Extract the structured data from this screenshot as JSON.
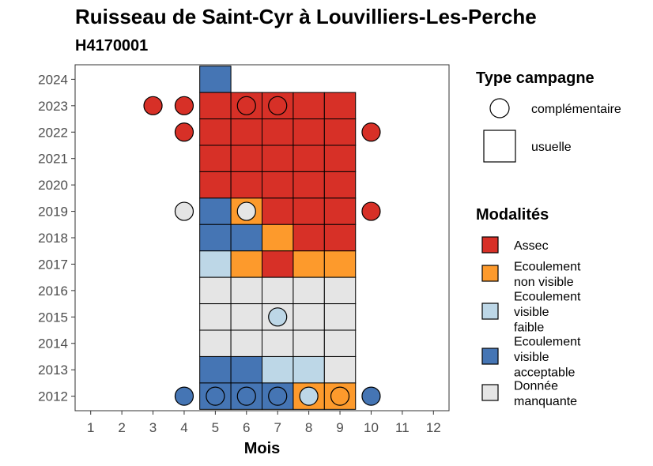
{
  "chart_data": {
    "type": "heatmap",
    "title": "Ruisseau de Saint-Cyr à Louvilliers-Les-Perche",
    "subtitle": "H4170001",
    "xlabel": "Mois",
    "ylabel": "",
    "x_ticks": [
      1,
      2,
      3,
      4,
      5,
      6,
      7,
      8,
      9,
      10,
      11,
      12
    ],
    "y_ticks": [
      2012,
      2013,
      2014,
      2015,
      2016,
      2017,
      2018,
      2019,
      2020,
      2021,
      2022,
      2023,
      2024
    ],
    "xlim": [
      0.5,
      12.5
    ],
    "ylim": [
      2011.45,
      2024.55
    ],
    "grid": false,
    "legend_position": "right",
    "legends": {
      "type_campagne": {
        "title": "Type campagne",
        "items": [
          {
            "key": "complementaire",
            "label": "complémentaire",
            "shape": "circle"
          },
          {
            "key": "usuelle",
            "label": "usuelle",
            "shape": "square"
          }
        ]
      },
      "modalites": {
        "title": "Modalités",
        "items": [
          {
            "key": "assec",
            "lines": [
              "Assec"
            ],
            "color": "#d73027"
          },
          {
            "key": "ecoulement_non_visible",
            "lines": [
              "Ecoulement",
              "non visible"
            ],
            "color": "#fd9a2c"
          },
          {
            "key": "ecoulement_visible_faible",
            "lines": [
              "Ecoulement",
              "visible",
              "faible"
            ],
            "color": "#bdd7e7"
          },
          {
            "key": "ecoulement_visible_acceptable",
            "lines": [
              "Ecoulement",
              "visible",
              "acceptable"
            ],
            "color": "#4575b4"
          },
          {
            "key": "donnee_manquante",
            "lines": [
              "Donnée",
              "manquante"
            ],
            "color": "#e5e5e5"
          }
        ]
      }
    },
    "tiles": [
      {
        "year": 2024,
        "month": 5,
        "value": "ecoulement_visible_acceptable"
      },
      {
        "year": 2023,
        "month": 5,
        "value": "assec"
      },
      {
        "year": 2023,
        "month": 6,
        "value": "assec"
      },
      {
        "year": 2023,
        "month": 7,
        "value": "assec"
      },
      {
        "year": 2023,
        "month": 8,
        "value": "assec"
      },
      {
        "year": 2023,
        "month": 9,
        "value": "assec"
      },
      {
        "year": 2022,
        "month": 5,
        "value": "assec"
      },
      {
        "year": 2022,
        "month": 6,
        "value": "assec"
      },
      {
        "year": 2022,
        "month": 7,
        "value": "assec"
      },
      {
        "year": 2022,
        "month": 8,
        "value": "assec"
      },
      {
        "year": 2022,
        "month": 9,
        "value": "assec"
      },
      {
        "year": 2021,
        "month": 5,
        "value": "assec"
      },
      {
        "year": 2021,
        "month": 6,
        "value": "assec"
      },
      {
        "year": 2021,
        "month": 7,
        "value": "assec"
      },
      {
        "year": 2021,
        "month": 8,
        "value": "assec"
      },
      {
        "year": 2021,
        "month": 9,
        "value": "assec"
      },
      {
        "year": 2020,
        "month": 5,
        "value": "assec"
      },
      {
        "year": 2020,
        "month": 6,
        "value": "assec"
      },
      {
        "year": 2020,
        "month": 7,
        "value": "assec"
      },
      {
        "year": 2020,
        "month": 8,
        "value": "assec"
      },
      {
        "year": 2020,
        "month": 9,
        "value": "assec"
      },
      {
        "year": 2019,
        "month": 5,
        "value": "ecoulement_visible_acceptable"
      },
      {
        "year": 2019,
        "month": 6,
        "value": "ecoulement_non_visible"
      },
      {
        "year": 2019,
        "month": 7,
        "value": "assec"
      },
      {
        "year": 2019,
        "month": 8,
        "value": "assec"
      },
      {
        "year": 2019,
        "month": 9,
        "value": "assec"
      },
      {
        "year": 2018,
        "month": 5,
        "value": "ecoulement_visible_acceptable"
      },
      {
        "year": 2018,
        "month": 6,
        "value": "ecoulement_visible_acceptable"
      },
      {
        "year": 2018,
        "month": 7,
        "value": "ecoulement_non_visible"
      },
      {
        "year": 2018,
        "month": 8,
        "value": "assec"
      },
      {
        "year": 2018,
        "month": 9,
        "value": "assec"
      },
      {
        "year": 2017,
        "month": 5,
        "value": "ecoulement_visible_faible"
      },
      {
        "year": 2017,
        "month": 6,
        "value": "ecoulement_non_visible"
      },
      {
        "year": 2017,
        "month": 7,
        "value": "assec"
      },
      {
        "year": 2017,
        "month": 8,
        "value": "ecoulement_non_visible"
      },
      {
        "year": 2017,
        "month": 9,
        "value": "ecoulement_non_visible"
      },
      {
        "year": 2016,
        "month": 5,
        "value": "donnee_manquante"
      },
      {
        "year": 2016,
        "month": 6,
        "value": "donnee_manquante"
      },
      {
        "year": 2016,
        "month": 7,
        "value": "donnee_manquante"
      },
      {
        "year": 2016,
        "month": 8,
        "value": "donnee_manquante"
      },
      {
        "year": 2016,
        "month": 9,
        "value": "donnee_manquante"
      },
      {
        "year": 2015,
        "month": 5,
        "value": "donnee_manquante"
      },
      {
        "year": 2015,
        "month": 6,
        "value": "donnee_manquante"
      },
      {
        "year": 2015,
        "month": 7,
        "value": "donnee_manquante"
      },
      {
        "year": 2015,
        "month": 8,
        "value": "donnee_manquante"
      },
      {
        "year": 2015,
        "month": 9,
        "value": "donnee_manquante"
      },
      {
        "year": 2014,
        "month": 5,
        "value": "donnee_manquante"
      },
      {
        "year": 2014,
        "month": 6,
        "value": "donnee_manquante"
      },
      {
        "year": 2014,
        "month": 7,
        "value": "donnee_manquante"
      },
      {
        "year": 2014,
        "month": 8,
        "value": "donnee_manquante"
      },
      {
        "year": 2014,
        "month": 9,
        "value": "donnee_manquante"
      },
      {
        "year": 2013,
        "month": 5,
        "value": "ecoulement_visible_acceptable"
      },
      {
        "year": 2013,
        "month": 6,
        "value": "ecoulement_visible_acceptable"
      },
      {
        "year": 2013,
        "month": 7,
        "value": "ecoulement_visible_faible"
      },
      {
        "year": 2013,
        "month": 8,
        "value": "ecoulement_visible_faible"
      },
      {
        "year": 2013,
        "month": 9,
        "value": "donnee_manquante"
      },
      {
        "year": 2012,
        "month": 5,
        "value": "ecoulement_visible_acceptable"
      },
      {
        "year": 2012,
        "month": 6,
        "value": "ecoulement_visible_acceptable"
      },
      {
        "year": 2012,
        "month": 7,
        "value": "ecoulement_visible_acceptable"
      },
      {
        "year": 2012,
        "month": 8,
        "value": "ecoulement_non_visible"
      },
      {
        "year": 2012,
        "month": 9,
        "value": "ecoulement_non_visible"
      }
    ],
    "points": [
      {
        "year": 2023,
        "month": 3,
        "value": "assec"
      },
      {
        "year": 2023,
        "month": 4,
        "value": "assec"
      },
      {
        "year": 2023,
        "month": 6,
        "value": "assec"
      },
      {
        "year": 2023,
        "month": 7,
        "value": "assec"
      },
      {
        "year": 2022,
        "month": 4,
        "value": "assec"
      },
      {
        "year": 2022,
        "month": 10,
        "value": "assec"
      },
      {
        "year": 2019,
        "month": 4,
        "value": "donnee_manquante"
      },
      {
        "year": 2019,
        "month": 6,
        "value": "donnee_manquante"
      },
      {
        "year": 2019,
        "month": 10,
        "value": "assec"
      },
      {
        "year": 2015,
        "month": 7,
        "value": "ecoulement_visible_faible"
      },
      {
        "year": 2012,
        "month": 4,
        "value": "ecoulement_visible_acceptable"
      },
      {
        "year": 2012,
        "month": 5,
        "value": "ecoulement_visible_acceptable"
      },
      {
        "year": 2012,
        "month": 6,
        "value": "ecoulement_visible_acceptable"
      },
      {
        "year": 2012,
        "month": 7,
        "value": "ecoulement_visible_acceptable"
      },
      {
        "year": 2012,
        "month": 8,
        "value": "ecoulement_visible_faible"
      },
      {
        "year": 2012,
        "month": 9,
        "value": "ecoulement_non_visible"
      },
      {
        "year": 2012,
        "month": 10,
        "value": "ecoulement_visible_acceptable"
      }
    ]
  }
}
